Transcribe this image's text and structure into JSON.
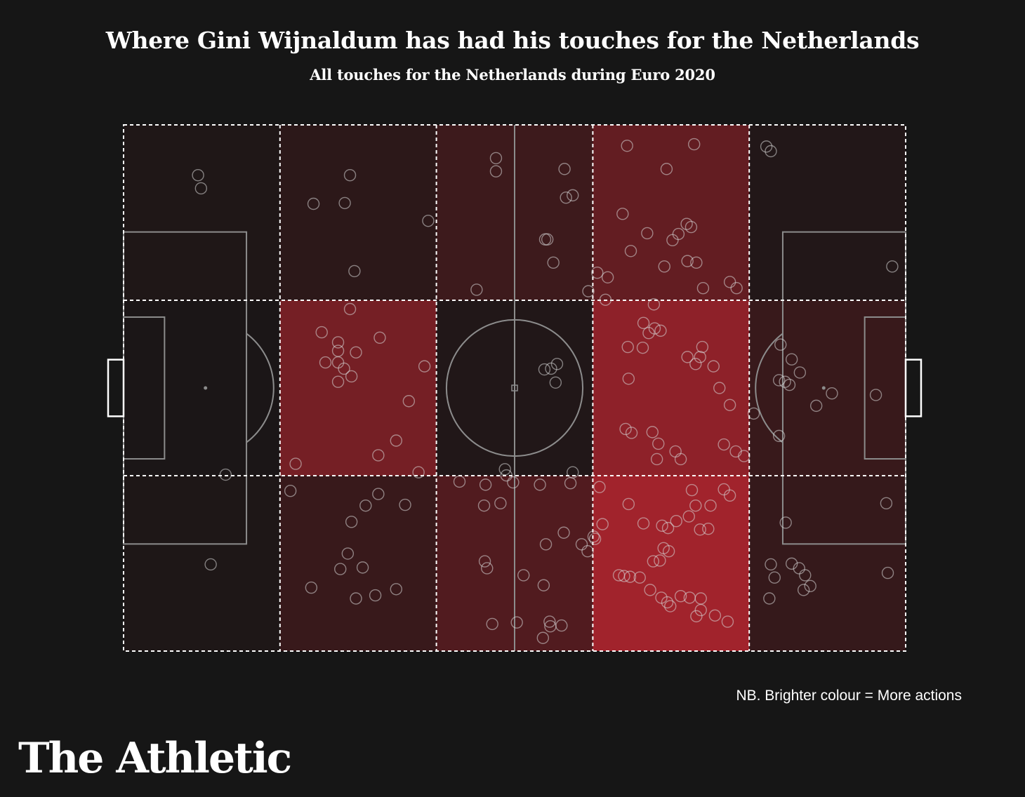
{
  "title": "Where Gini Wijnaldum has had his touches for the Netherlands",
  "subtitle": "All touches for the Netherlands during Euro 2020",
  "note": "NB. Brighter colour = More actions",
  "brand": "The Athletic",
  "colors": {
    "background": "#161616",
    "heat_base": "#161616",
    "heat_max": "#b0242e",
    "pitch_lines": "#8c8c8c",
    "zone_lines": "#ffffff",
    "touch_marker": "#d7d7d7"
  },
  "chart_data": {
    "type": "heatmap",
    "pitch_length_m": 105,
    "pitch_width_m": 68,
    "x_range": [
      0,
      105
    ],
    "y_range": [
      0,
      68
    ],
    "zone_columns": 5,
    "zone_rows": 3,
    "zone_intensity": [
      [
        0.06,
        0.14,
        0.25,
        0.5,
        0.08
      ],
      [
        0.03,
        0.62,
        0.07,
        0.78,
        0.22
      ],
      [
        0.05,
        0.22,
        0.38,
        0.9,
        0.2
      ]
    ],
    "touches": [
      [
        10,
        6.5
      ],
      [
        10.4,
        8.2
      ],
      [
        30.4,
        6.5
      ],
      [
        29.7,
        10.1
      ],
      [
        25.5,
        10.2
      ],
      [
        40.9,
        12.4
      ],
      [
        31,
        18.9
      ],
      [
        50,
        4.3
      ],
      [
        50,
        6
      ],
      [
        59.2,
        5.7
      ],
      [
        59.4,
        9.4
      ],
      [
        60.3,
        9.1
      ],
      [
        56.9,
        14.8
      ],
      [
        56.6,
        14.8
      ],
      [
        57.7,
        17.8
      ],
      [
        47.4,
        21.3
      ],
      [
        62.4,
        21.5
      ],
      [
        67.6,
        2.7
      ],
      [
        76.6,
        2.5
      ],
      [
        72.9,
        5.7
      ],
      [
        67,
        11.5
      ],
      [
        70.3,
        14
      ],
      [
        73.7,
        14.9
      ],
      [
        74.5,
        14.1
      ],
      [
        75.6,
        12.8
      ],
      [
        76.2,
        13.2
      ],
      [
        72.6,
        18.3
      ],
      [
        75.7,
        17.6
      ],
      [
        76.9,
        17.8
      ],
      [
        68.1,
        16.3
      ],
      [
        63.6,
        19.1
      ],
      [
        65,
        19.7
      ],
      [
        64.7,
        22.6
      ],
      [
        71.2,
        23.2
      ],
      [
        77.8,
        21.1
      ],
      [
        82.3,
        21.1
      ],
      [
        81.4,
        20.3
      ],
      [
        86.3,
        2.8
      ],
      [
        86.9,
        3.4
      ],
      [
        103.2,
        18.3
      ],
      [
        30.4,
        23.8
      ],
      [
        26.6,
        26.8
      ],
      [
        28.8,
        28.1
      ],
      [
        28.8,
        29.2
      ],
      [
        31.2,
        29.4
      ],
      [
        27.1,
        30.7
      ],
      [
        28.8,
        30.7
      ],
      [
        29.6,
        31.5
      ],
      [
        30.6,
        32.5
      ],
      [
        28.8,
        33.2
      ],
      [
        34.4,
        27.5
      ],
      [
        40.4,
        31.2
      ],
      [
        38.3,
        35.7
      ],
      [
        36.6,
        40.8
      ],
      [
        34.2,
        42.7
      ],
      [
        23.1,
        43.8
      ],
      [
        39.6,
        44.9
      ],
      [
        57.4,
        31.5
      ],
      [
        58.2,
        30.9
      ],
      [
        56.5,
        31.6
      ],
      [
        58,
        33.3
      ],
      [
        69.8,
        25.6
      ],
      [
        70.5,
        26.9
      ],
      [
        71.3,
        26.3
      ],
      [
        72.1,
        26.6
      ],
      [
        67.7,
        28.7
      ],
      [
        69.7,
        28.8
      ],
      [
        77.7,
        28.7
      ],
      [
        75.7,
        30
      ],
      [
        76.8,
        30.9
      ],
      [
        79.2,
        31.2
      ],
      [
        77.4,
        30
      ],
      [
        67.8,
        32.8
      ],
      [
        80,
        34
      ],
      [
        81.4,
        36.2
      ],
      [
        67.4,
        39.3
      ],
      [
        68.2,
        39.8
      ],
      [
        71,
        39.7
      ],
      [
        71.8,
        41.2
      ],
      [
        74.1,
        42.2
      ],
      [
        71.6,
        43.2
      ],
      [
        74.8,
        43.2
      ],
      [
        80.6,
        41.3
      ],
      [
        82.2,
        42.2
      ],
      [
        83.3,
        42.8
      ],
      [
        88.2,
        28.4
      ],
      [
        89.7,
        30.3
      ],
      [
        90.8,
        32
      ],
      [
        88,
        33
      ],
      [
        88.8,
        33.2
      ],
      [
        89.4,
        33.6
      ],
      [
        95.1,
        34.7
      ],
      [
        93,
        36.3
      ],
      [
        101,
        34.9
      ],
      [
        88,
        40.2
      ],
      [
        84.6,
        37.3
      ],
      [
        13.7,
        45.2
      ],
      [
        22.4,
        47.3
      ],
      [
        34.2,
        47.7
      ],
      [
        45.1,
        46.1
      ],
      [
        51.2,
        44.5
      ],
      [
        51.4,
        45.3
      ],
      [
        55.9,
        46.5
      ],
      [
        60.3,
        44.9
      ],
      [
        60,
        46.3
      ],
      [
        32.5,
        49.2
      ],
      [
        37.8,
        49.1
      ],
      [
        30.6,
        51.3
      ],
      [
        30.1,
        55.4
      ],
      [
        29.1,
        57.4
      ],
      [
        32.1,
        57.2
      ],
      [
        25.2,
        59.8
      ],
      [
        31.2,
        61.2
      ],
      [
        33.8,
        60.8
      ],
      [
        36.6,
        60
      ],
      [
        11.7,
        56.8
      ],
      [
        48.6,
        46.5
      ],
      [
        48.4,
        49.2
      ],
      [
        50.6,
        48.9
      ],
      [
        52.3,
        46.2
      ],
      [
        53.7,
        58.2
      ],
      [
        56.4,
        59.5
      ],
      [
        61.5,
        54.2
      ],
      [
        59.1,
        52.7
      ],
      [
        56.7,
        54.2
      ],
      [
        48.5,
        56.4
      ],
      [
        48.8,
        57.3
      ],
      [
        49.5,
        64.5
      ],
      [
        52.8,
        64.3
      ],
      [
        57.2,
        64.2
      ],
      [
        57.3,
        64.8
      ],
      [
        56.3,
        66.3
      ],
      [
        58.8,
        64.7
      ],
      [
        62.3,
        55.1
      ],
      [
        63.1,
        53.2
      ],
      [
        63.9,
        46.8
      ],
      [
        67.8,
        49
      ],
      [
        76.3,
        47.2
      ],
      [
        80.6,
        47.1
      ],
      [
        81.4,
        47.9
      ],
      [
        78.8,
        49.2
      ],
      [
        69.8,
        51.5
      ],
      [
        72.3,
        51.8
      ],
      [
        73.1,
        52.1
      ],
      [
        74.2,
        51.2
      ],
      [
        75.9,
        50.6
      ],
      [
        76.8,
        49.2
      ],
      [
        78.5,
        52.2
      ],
      [
        77.4,
        52.3
      ],
      [
        64.3,
        51.6
      ],
      [
        63.3,
        53.5
      ],
      [
        72.5,
        54.7
      ],
      [
        73.2,
        55.1
      ],
      [
        72,
        56.3
      ],
      [
        71.1,
        56.4
      ],
      [
        66.5,
        58.2
      ],
      [
        67.2,
        58.3
      ],
      [
        68,
        58.4
      ],
      [
        69.3,
        58.5
      ],
      [
        70.7,
        60.1
      ],
      [
        72.2,
        61.1
      ],
      [
        73,
        61.7
      ],
      [
        73.4,
        62.2
      ],
      [
        74.8,
        60.9
      ],
      [
        76,
        61.1
      ],
      [
        77.5,
        61.2
      ],
      [
        77.5,
        62.7
      ],
      [
        76.9,
        63.5
      ],
      [
        79.4,
        63.4
      ],
      [
        81.1,
        64.2
      ],
      [
        88.9,
        51.4
      ],
      [
        86.9,
        56.8
      ],
      [
        87.4,
        58.5
      ],
      [
        89.7,
        56.7
      ],
      [
        90.7,
        57.3
      ],
      [
        91.5,
        58.2
      ],
      [
        92.2,
        59.6
      ],
      [
        91.3,
        60.1
      ],
      [
        86.7,
        61.2
      ],
      [
        102.4,
        48.9
      ],
      [
        102.6,
        57.9
      ]
    ]
  }
}
